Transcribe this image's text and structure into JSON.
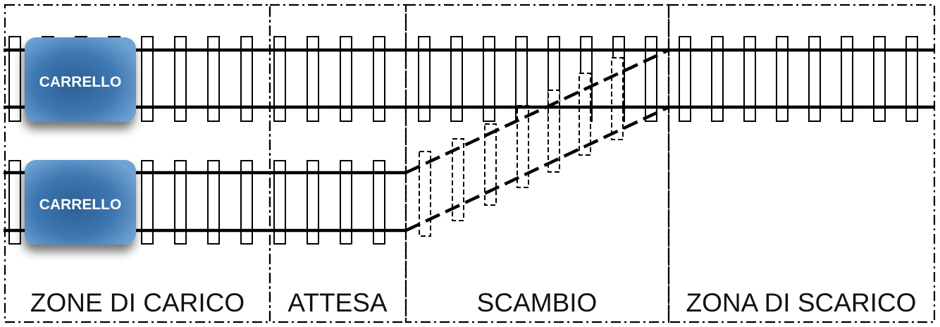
{
  "zones": [
    {
      "id": "carico",
      "label": "ZONE DI CARICO"
    },
    {
      "id": "attesa",
      "label": "ATTESA"
    },
    {
      "id": "scambio",
      "label": "SCAMBIO"
    },
    {
      "id": "scarico",
      "label": "ZONA DI SCARICO"
    }
  ],
  "carts": [
    {
      "label": "CARRELLO"
    },
    {
      "label": "CARRELLO"
    }
  ],
  "colors": {
    "rail": "#000000",
    "cart_top": "#6fa3d3",
    "cart_bottom": "#2c5f93",
    "zone_border": "#000000"
  }
}
